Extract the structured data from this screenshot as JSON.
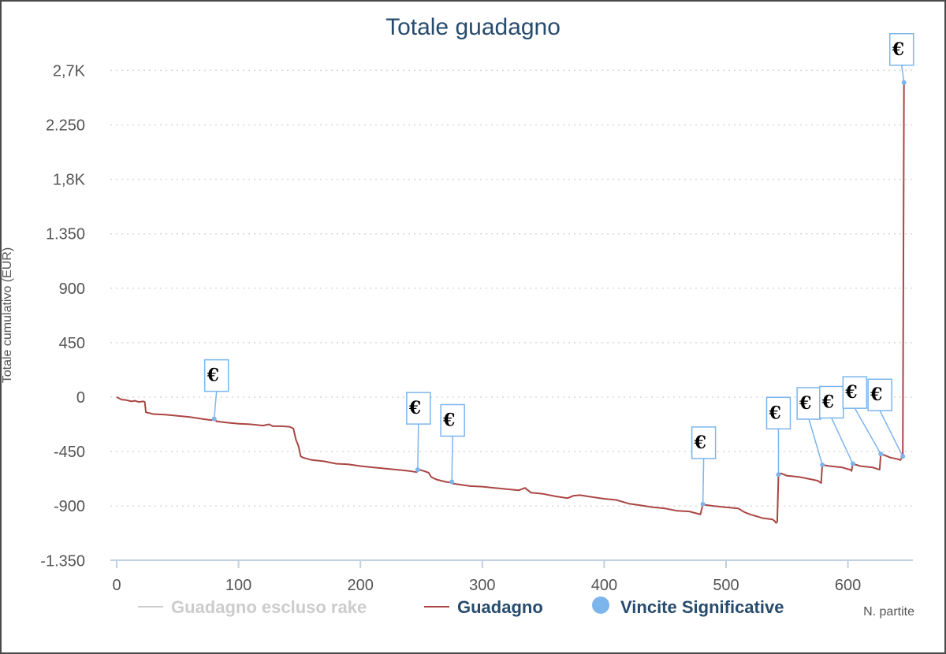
{
  "chart_data": {
    "type": "line",
    "title": "Totale guadagno",
    "xlabel": "N. partite",
    "ylabel": "Totale cumulativo (EUR)",
    "xlim": [
      -5,
      655
    ],
    "ylim": [
      -1350,
      2750
    ],
    "x_ticks": [
      {
        "value": 0,
        "label": "0"
      },
      {
        "value": 100,
        "label": "100"
      },
      {
        "value": 200,
        "label": "200"
      },
      {
        "value": 300,
        "label": "300"
      },
      {
        "value": 400,
        "label": "400"
      },
      {
        "value": 500,
        "label": "500"
      },
      {
        "value": 600,
        "label": "600"
      }
    ],
    "y_ticks": [
      {
        "value": 2700,
        "label": "2,7K"
      },
      {
        "value": 2250,
        "label": "2.250"
      },
      {
        "value": 1800,
        "label": "1,8K"
      },
      {
        "value": 1350,
        "label": "1.350"
      },
      {
        "value": 900,
        "label": "900"
      },
      {
        "value": 450,
        "label": "450"
      },
      {
        "value": 0,
        "label": "0"
      },
      {
        "value": -450,
        "label": "-450"
      },
      {
        "value": -900,
        "label": "-900"
      },
      {
        "value": -1350,
        "label": "-1.350"
      }
    ],
    "grid": true,
    "legend_position": "bottom",
    "legend": [
      {
        "name": "Guadagno escluso rake",
        "color": "#cccccc",
        "text_color": "#cccccc",
        "symbol": "line"
      },
      {
        "name": "Guadagno",
        "color": "#aa4643",
        "text_color": "#274b6d",
        "symbol": "line"
      },
      {
        "name": "Vincite Significative",
        "color": "#7cb5ec",
        "text_color": "#274b6d",
        "symbol": "circle"
      }
    ],
    "series": [
      {
        "name": "Guadagno",
        "color": "#aa4643",
        "points": [
          [
            0,
            0
          ],
          [
            2,
            -10
          ],
          [
            4,
            -20
          ],
          [
            8,
            -25
          ],
          [
            12,
            -35
          ],
          [
            15,
            -30
          ],
          [
            18,
            -40
          ],
          [
            22,
            -35
          ],
          [
            23,
            -40
          ],
          [
            24,
            -125
          ],
          [
            26,
            -130
          ],
          [
            28,
            -135
          ],
          [
            30,
            -140
          ],
          [
            40,
            -145
          ],
          [
            50,
            -155
          ],
          [
            60,
            -165
          ],
          [
            70,
            -180
          ],
          [
            78,
            -190
          ],
          [
            80,
            -180
          ],
          [
            82,
            -200
          ],
          [
            90,
            -210
          ],
          [
            100,
            -220
          ],
          [
            110,
            -225
          ],
          [
            120,
            -235
          ],
          [
            125,
            -225
          ],
          [
            128,
            -240
          ],
          [
            135,
            -240
          ],
          [
            142,
            -245
          ],
          [
            145,
            -260
          ],
          [
            147,
            -350
          ],
          [
            149,
            -400
          ],
          [
            150,
            -440
          ],
          [
            151,
            -490
          ],
          [
            153,
            -500
          ],
          [
            160,
            -520
          ],
          [
            170,
            -530
          ],
          [
            180,
            -550
          ],
          [
            190,
            -555
          ],
          [
            200,
            -570
          ],
          [
            210,
            -580
          ],
          [
            220,
            -590
          ],
          [
            230,
            -600
          ],
          [
            240,
            -610
          ],
          [
            246,
            -620
          ],
          [
            248,
            -600
          ],
          [
            252,
            -610
          ],
          [
            256,
            -625
          ],
          [
            258,
            -660
          ],
          [
            262,
            -680
          ],
          [
            266,
            -690
          ],
          [
            270,
            -700
          ],
          [
            274,
            -705
          ],
          [
            275,
            -700
          ],
          [
            276,
            -715
          ],
          [
            280,
            -720
          ],
          [
            290,
            -735
          ],
          [
            300,
            -740
          ],
          [
            310,
            -750
          ],
          [
            320,
            -760
          ],
          [
            330,
            -770
          ],
          [
            335,
            -750
          ],
          [
            340,
            -790
          ],
          [
            350,
            -800
          ],
          [
            360,
            -820
          ],
          [
            370,
            -835
          ],
          [
            375,
            -815
          ],
          [
            380,
            -810
          ],
          [
            390,
            -825
          ],
          [
            400,
            -840
          ],
          [
            410,
            -850
          ],
          [
            420,
            -880
          ],
          [
            430,
            -895
          ],
          [
            440,
            -910
          ],
          [
            450,
            -920
          ],
          [
            460,
            -940
          ],
          [
            470,
            -945
          ],
          [
            479,
            -970
          ],
          [
            481,
            -885
          ],
          [
            483,
            -890
          ],
          [
            490,
            -900
          ],
          [
            500,
            -910
          ],
          [
            510,
            -920
          ],
          [
            515,
            -950
          ],
          [
            520,
            -970
          ],
          [
            530,
            -1000
          ],
          [
            538,
            -1010
          ],
          [
            540,
            -1025
          ],
          [
            541,
            -1040
          ],
          [
            542,
            -1030
          ],
          [
            543,
            -640
          ],
          [
            545,
            -630
          ],
          [
            550,
            -650
          ],
          [
            560,
            -660
          ],
          [
            570,
            -680
          ],
          [
            575,
            -690
          ],
          [
            578,
            -710
          ],
          [
            579,
            -560
          ],
          [
            585,
            -570
          ],
          [
            595,
            -580
          ],
          [
            600,
            -595
          ],
          [
            602,
            -600
          ],
          [
            603,
            -610
          ],
          [
            604,
            -550
          ],
          [
            610,
            -570
          ],
          [
            620,
            -580
          ],
          [
            626,
            -600
          ],
          [
            627,
            -470
          ],
          [
            630,
            -480
          ],
          [
            635,
            -500
          ],
          [
            640,
            -510
          ],
          [
            643,
            -520
          ],
          [
            645,
            -490
          ],
          [
            646,
            2600
          ]
        ]
      }
    ],
    "highlights": [
      {
        "series": "Vincite Significative",
        "label": "€",
        "x": 80,
        "y": -180
      },
      {
        "series": "Vincite Significative",
        "label": "€",
        "x": 247,
        "y": -600
      },
      {
        "series": "Vincite Significative",
        "label": "€",
        "x": 275,
        "y": -700
      },
      {
        "series": "Vincite Significative",
        "label": "€",
        "x": 481,
        "y": -885
      },
      {
        "series": "Vincite Significative",
        "label": "€",
        "x": 543,
        "y": -640
      },
      {
        "series": "Vincite Significative",
        "label": "€",
        "x": 579,
        "y": -560
      },
      {
        "series": "Vincite Significative",
        "label": "€",
        "x": 604,
        "y": -550
      },
      {
        "series": "Vincite Significative",
        "label": "€",
        "x": 627,
        "y": -470
      },
      {
        "series": "Vincite Significative",
        "label": "€",
        "x": 645,
        "y": -490
      },
      {
        "series": "Vincite Significative",
        "label": "€",
        "x": 646,
        "y": 2600
      }
    ]
  }
}
